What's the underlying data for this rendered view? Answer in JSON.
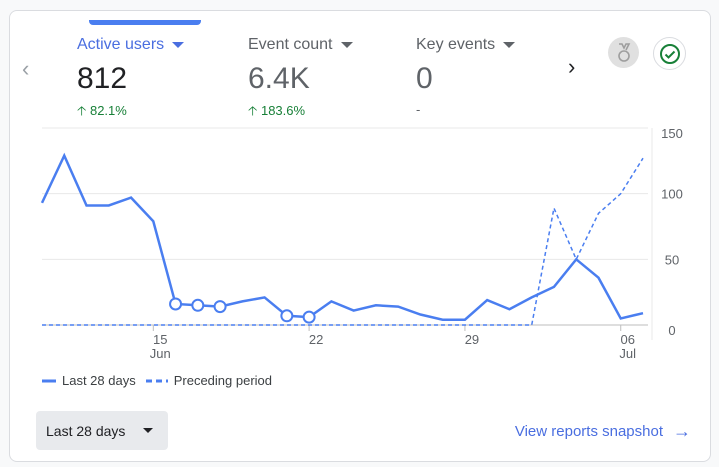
{
  "metrics": [
    {
      "label": "Active users",
      "value": "812",
      "delta": "82.1%",
      "direction": "up",
      "selected": true
    },
    {
      "label": "Event count",
      "value": "6.4K",
      "delta": "183.6%",
      "direction": "up",
      "selected": false
    },
    {
      "label": "Key events",
      "value": "0",
      "delta": "-",
      "direction": "none",
      "selected": false
    }
  ],
  "icons": {
    "prev": "chevron-left-icon",
    "next": "chevron-right-icon",
    "badge1": "medal-icon",
    "badge2": "check-circle-icon"
  },
  "colors": {
    "accent": "#4a7ef0",
    "positive": "#188038"
  },
  "chart_data": {
    "type": "line",
    "x": [
      "Jun 10",
      "Jun 11",
      "Jun 12",
      "Jun 13",
      "Jun 14",
      "Jun 15",
      "Jun 16",
      "Jun 17",
      "Jun 18",
      "Jun 19",
      "Jun 20",
      "Jun 21",
      "Jun 22",
      "Jun 23",
      "Jun 24",
      "Jun 25",
      "Jun 26",
      "Jun 27",
      "Jun 28",
      "Jun 29",
      "Jun 30",
      "Jul 01",
      "Jul 02",
      "Jul 03",
      "Jul 04",
      "Jul 05",
      "Jul 06",
      "Jul 07"
    ],
    "xticks": [
      {
        "label": "15",
        "sub": "Jun",
        "index": 5
      },
      {
        "label": "22",
        "sub": "",
        "index": 12
      },
      {
        "label": "29",
        "sub": "",
        "index": 19
      },
      {
        "label": "06",
        "sub": "Jul",
        "index": 26
      }
    ],
    "yticks": [
      "150",
      "100",
      "50",
      "0"
    ],
    "ylim": [
      0,
      150
    ],
    "grid": true,
    "legend_position": "bottom-left",
    "series": [
      {
        "name": "Last 28 days",
        "style": "solid",
        "values": [
          93,
          129,
          91,
          91,
          97,
          79,
          16,
          15,
          14,
          18,
          21,
          7,
          6,
          18,
          11,
          15,
          14,
          8,
          4,
          4,
          19,
          12,
          21,
          29,
          50,
          36,
          5,
          9
        ],
        "anomalies": [
          6,
          7,
          8,
          11,
          12
        ]
      },
      {
        "name": "Preceding period",
        "style": "dashed",
        "values": [
          0,
          0,
          0,
          0,
          0,
          0,
          0,
          0,
          0,
          0,
          0,
          0,
          0,
          0,
          0,
          0,
          0,
          0,
          0,
          0,
          0,
          0,
          0,
          89,
          50,
          85,
          100,
          127
        ]
      }
    ]
  },
  "footer": {
    "range_label": "Last 28 days",
    "snapshot_label": "View reports snapshot"
  }
}
